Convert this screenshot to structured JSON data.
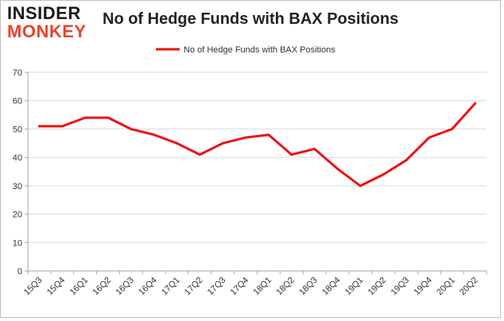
{
  "logo": {
    "line1": "INSIDER",
    "line2": "MONKEY"
  },
  "chart_data": {
    "type": "line",
    "title": "No of Hedge Funds with BAX Positions",
    "xlabel": "",
    "ylabel": "",
    "categories": [
      "15Q3",
      "15Q4",
      "16Q1",
      "16Q2",
      "16Q3",
      "16Q4",
      "17Q1",
      "17Q2",
      "17Q3",
      "17Q4",
      "18Q1",
      "18Q2",
      "18Q3",
      "18Q4",
      "19Q1",
      "19Q2",
      "19Q3",
      "19Q4",
      "20Q1",
      "20Q2"
    ],
    "series": [
      {
        "name": "No of Hedge Funds with BAX Positions",
        "values": [
          51,
          51,
          54,
          54,
          50,
          48,
          45,
          41,
          45,
          47,
          48,
          41,
          43,
          36,
          30,
          34,
          39,
          47,
          50,
          59
        ]
      }
    ],
    "ylim": [
      0,
      70
    ],
    "yticks": [
      0,
      10,
      20,
      30,
      40,
      50,
      60,
      70
    ],
    "grid": true,
    "legend": "top-center",
    "line_color": "#ee1111",
    "grid_color": "#d9d9d9",
    "axis_color": "#a6a6a6"
  }
}
